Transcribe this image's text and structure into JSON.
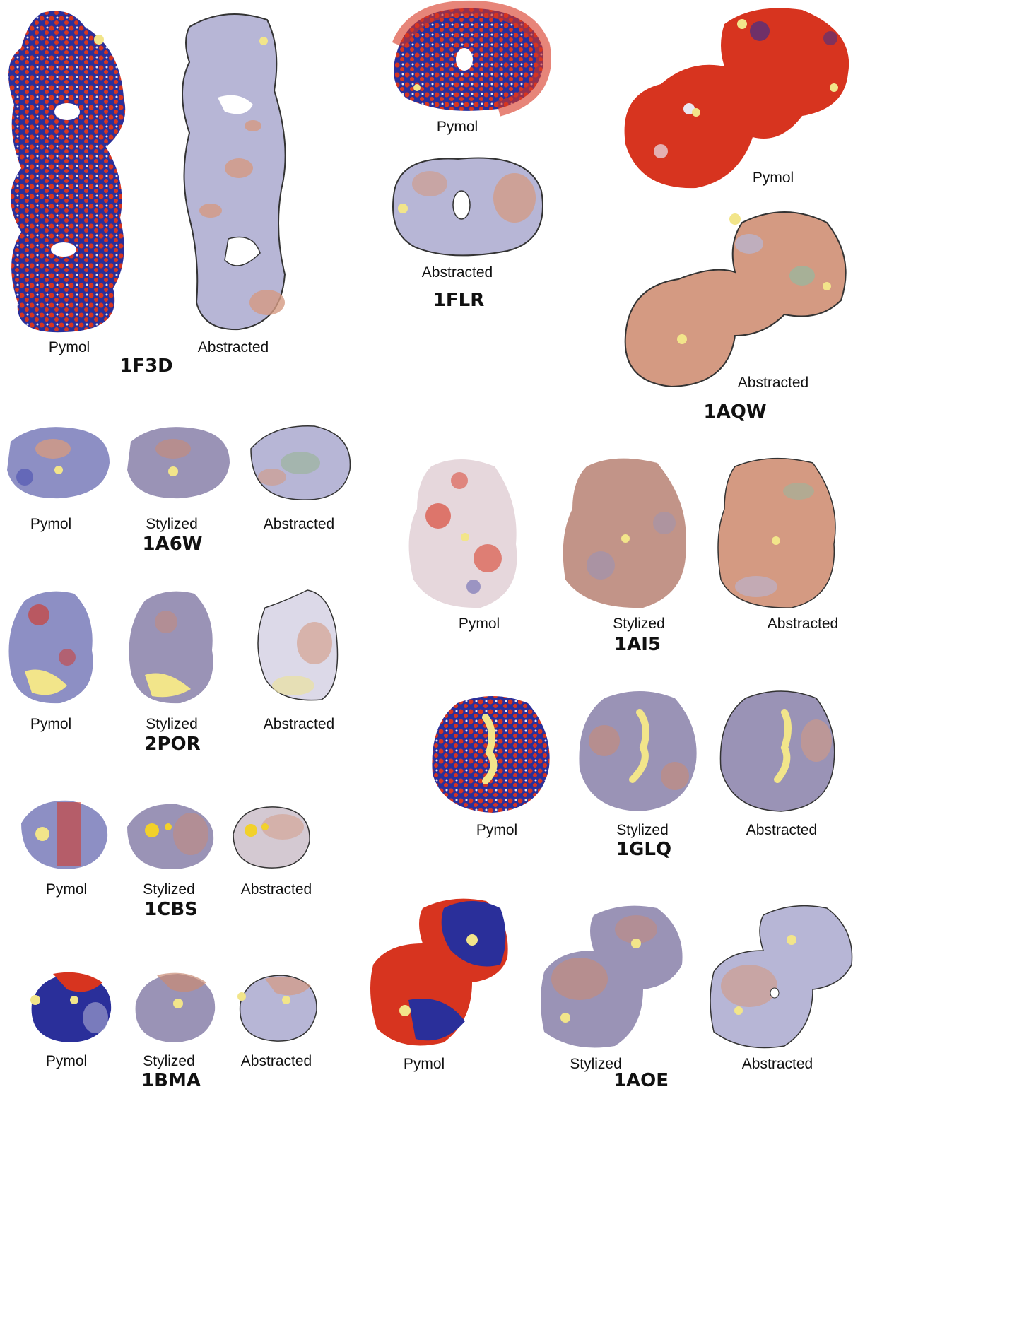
{
  "labels": {
    "pymol": "Pymol",
    "stylized": "Stylized",
    "abstracted": "Abstracted"
  },
  "proteins": {
    "f3d": "1F3D",
    "flr": "1FLR",
    "aqw": "1AQW",
    "a6w": "1A6W",
    "ai5": "1AI5",
    "por": "2POR",
    "glq": "1GLQ",
    "cbs": "1CBS",
    "bma": "1BMA",
    "aoe": "1AOE"
  },
  "colors": {
    "pymol_blue": "#2a2f9a",
    "pymol_red": "#d7341f",
    "stylized_base": "#9a93b6",
    "stylized_warm": "#c98a74",
    "abstract_lav": "#b7b6d6",
    "abstract_salmon": "#d49a82",
    "ligand_yellow": "#f2e58a"
  }
}
